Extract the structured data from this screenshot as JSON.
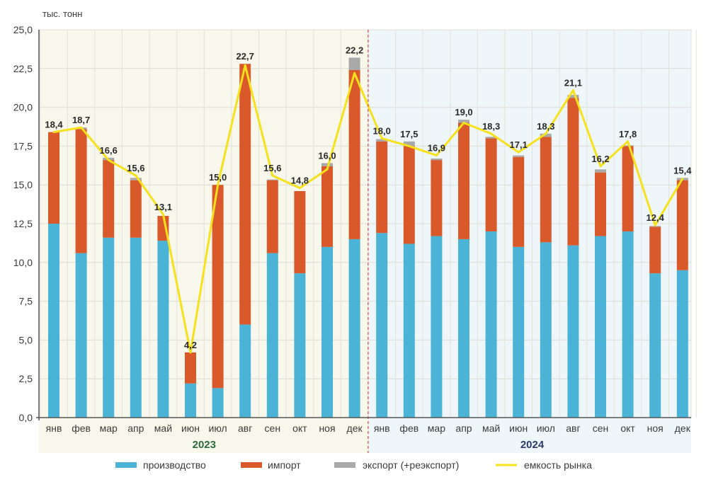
{
  "chart_data": {
    "type": "bar",
    "stacked": true,
    "title": "",
    "ylabel": "тыс. тонн",
    "xlabel": "",
    "ylim": [
      0,
      25
    ],
    "yticks": [
      "0,0",
      "2,5",
      "5,0",
      "7,5",
      "10,0",
      "12,5",
      "15,0",
      "17,5",
      "20,0",
      "22,5",
      "25,0"
    ],
    "ytick_values": [
      0,
      2.5,
      5,
      7.5,
      10,
      12.5,
      15,
      17.5,
      20,
      22.5,
      25
    ],
    "grid": true,
    "legend_position": "bottom",
    "groups": [
      {
        "label": "2023",
        "color": "#2e6b3a",
        "background": "#f7f7ec"
      },
      {
        "label": "2024",
        "color": "#2b3a6b",
        "background": "#eff6f9"
      }
    ],
    "categories": [
      "янв",
      "фев",
      "мар",
      "апр",
      "май",
      "июн",
      "июл",
      "авг",
      "сен",
      "окт",
      "ноя",
      "дек",
      "янв",
      "фев",
      "мар",
      "апр",
      "май",
      "июн",
      "июл",
      "авг",
      "сен",
      "окт",
      "ноя",
      "дек"
    ],
    "group_index": [
      0,
      0,
      0,
      0,
      0,
      0,
      0,
      0,
      0,
      0,
      0,
      0,
      1,
      1,
      1,
      1,
      1,
      1,
      1,
      1,
      1,
      1,
      1,
      1
    ],
    "series": [
      {
        "name": "производство",
        "kind": "bar",
        "color": "#4bb3d6",
        "values": [
          12.5,
          10.6,
          11.6,
          11.6,
          11.4,
          2.2,
          1.9,
          6.0,
          10.6,
          9.3,
          11.0,
          11.5,
          11.9,
          11.2,
          11.7,
          11.5,
          12.0,
          11.0,
          11.3,
          11.1,
          11.7,
          12.0,
          9.3,
          9.5
        ]
      },
      {
        "name": "импорт",
        "kind": "bar",
        "color": "#d9592a",
        "values": [
          5.9,
          8.0,
          5.0,
          3.7,
          1.6,
          2.0,
          13.1,
          16.8,
          4.7,
          5.3,
          5.2,
          10.9,
          5.9,
          6.3,
          4.9,
          7.5,
          6.0,
          5.8,
          6.8,
          9.5,
          4.1,
          5.5,
          3.0,
          5.8
        ]
      },
      {
        "name": "экспорт (+реэкспорт)",
        "kind": "bar",
        "color": "#a9a9a9",
        "values": [
          0.0,
          0.1,
          0.15,
          0.15,
          0.0,
          0.0,
          0.0,
          0.0,
          0.05,
          0.0,
          0.2,
          0.8,
          0.15,
          0.3,
          0.1,
          0.2,
          0.1,
          0.1,
          0.2,
          0.2,
          0.2,
          0.05,
          0.05,
          0.15
        ]
      },
      {
        "name": "емкость рынка",
        "kind": "line",
        "color": "#f5e11c",
        "values": [
          18.4,
          18.7,
          16.6,
          15.6,
          13.1,
          4.2,
          15.0,
          22.7,
          15.6,
          14.8,
          16.0,
          22.2,
          18.0,
          17.5,
          16.9,
          19.0,
          18.3,
          17.1,
          18.3,
          21.1,
          16.2,
          17.8,
          12.4,
          15.4
        ]
      }
    ],
    "data_labels": [
      "18,4",
      "18,7",
      "16,6",
      "15,6",
      "13,1",
      "4,2",
      "15,0",
      "22,7",
      "15,6",
      "14,8",
      "16,0",
      "22,2",
      "18,0",
      "17,5",
      "16,9",
      "19,0",
      "18,3",
      "17,1",
      "18,3",
      "21,1",
      "16,2",
      "17,8",
      "12,4",
      "15,4"
    ],
    "divider_color": "#d9534f"
  }
}
